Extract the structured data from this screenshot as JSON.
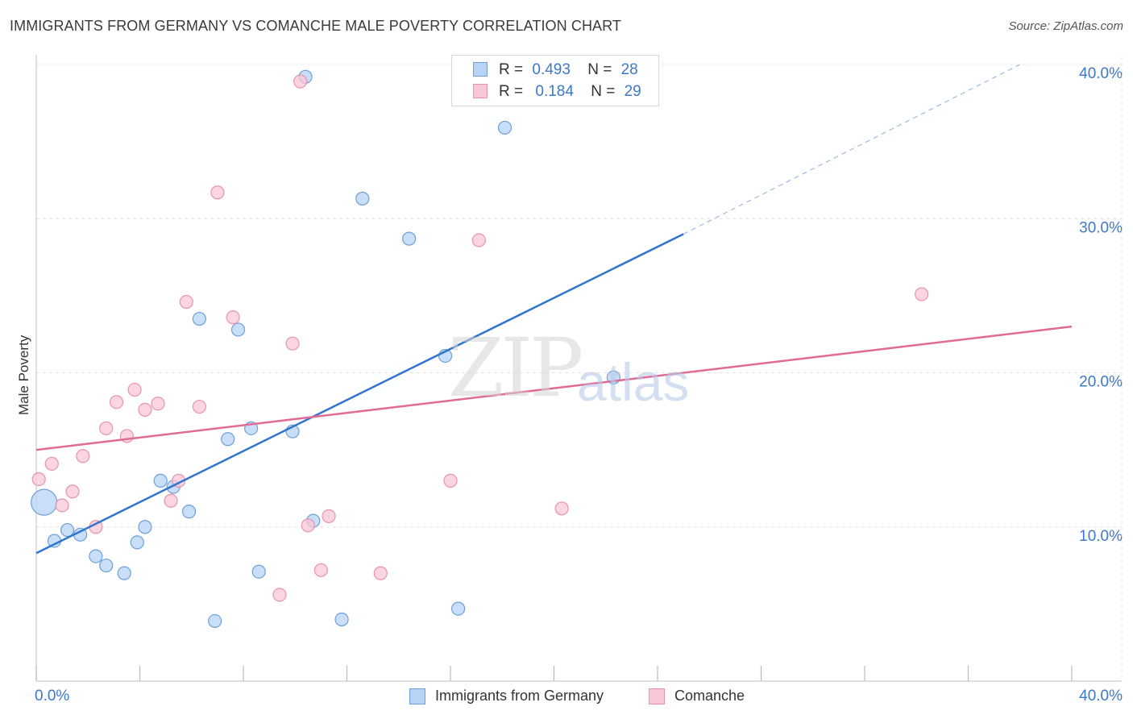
{
  "header": {
    "title": "IMMIGRANTS FROM GERMANY VS COMANCHE MALE POVERTY CORRELATION CHART",
    "source": "Source: ZipAtlas.com"
  },
  "watermark": {
    "zip": "ZIP",
    "atlas": "atlas"
  },
  "legend_top": {
    "rows": [
      {
        "r_label": "R =",
        "r_value": "0.493",
        "n_label": "N =",
        "n_value": "28"
      },
      {
        "r_label": "R =",
        "r_value": "0.184",
        "n_label": "N =",
        "n_value": "29"
      }
    ]
  },
  "colors": {
    "blue_fill": "#b7d3f5",
    "blue_stroke": "#6f9fd8",
    "blue_line": "#2f74cf",
    "pink_fill": "#f9c8d6",
    "pink_stroke": "#e693ad",
    "pink_line": "#e06b93",
    "grid": "#e2e2e2",
    "tick_label": "#3b78c9"
  },
  "chart_data": {
    "type": "scatter",
    "title": "IMMIGRANTS FROM GERMANY VS COMANCHE MALE POVERTY CORRELATION CHART",
    "xlabel": "",
    "ylabel": "Male Poverty",
    "xlim": [
      0,
      40
    ],
    "ylim": [
      0,
      40
    ],
    "x_tick_labels": [
      "0.0%",
      "40.0%"
    ],
    "y_ticks": [
      10,
      20,
      30,
      40
    ],
    "y_tick_labels": [
      "10.0%",
      "20.0%",
      "30.0%",
      "40.0%"
    ],
    "grid": true,
    "legend_position": "bottom",
    "series": [
      {
        "name": "Immigrants from Germany",
        "color": "#b7d3f5",
        "trend": {
          "x0": 0,
          "y0": 8.3,
          "x1": 25,
          "y1": 29.0,
          "dash_to_x": 38,
          "dash_to_y": 40.0
        },
        "points": [
          [
            0.3,
            11.6
          ],
          [
            0.7,
            9.1
          ],
          [
            1.2,
            9.8
          ],
          [
            1.7,
            9.5
          ],
          [
            2.3,
            8.1
          ],
          [
            2.7,
            7.5
          ],
          [
            3.4,
            7.0
          ],
          [
            3.9,
            9.0
          ],
          [
            4.2,
            10.0
          ],
          [
            4.8,
            13.0
          ],
          [
            5.3,
            12.6
          ],
          [
            5.9,
            11.0
          ],
          [
            6.3,
            23.5
          ],
          [
            6.9,
            3.9
          ],
          [
            7.4,
            15.7
          ],
          [
            7.8,
            22.8
          ],
          [
            8.3,
            16.4
          ],
          [
            8.6,
            7.1
          ],
          [
            9.9,
            16.2
          ],
          [
            10.4,
            39.2
          ],
          [
            10.7,
            10.4
          ],
          [
            11.8,
            4.0
          ],
          [
            12.6,
            31.3
          ],
          [
            14.4,
            28.7
          ],
          [
            15.8,
            21.1
          ],
          [
            16.3,
            4.7
          ],
          [
            18.1,
            35.9
          ],
          [
            22.3,
            19.7
          ]
        ]
      },
      {
        "name": "Comanche",
        "color": "#f9c8d6",
        "trend": {
          "x0": 0,
          "y0": 15.0,
          "x1": 40,
          "y1": 23.0
        },
        "points": [
          [
            0.1,
            13.1
          ],
          [
            0.6,
            14.1
          ],
          [
            1.0,
            11.4
          ],
          [
            1.4,
            12.3
          ],
          [
            1.8,
            14.6
          ],
          [
            2.3,
            10.0
          ],
          [
            2.7,
            16.4
          ],
          [
            3.1,
            18.1
          ],
          [
            3.5,
            15.9
          ],
          [
            3.8,
            18.9
          ],
          [
            4.2,
            17.6
          ],
          [
            4.7,
            18.0
          ],
          [
            5.2,
            11.7
          ],
          [
            5.5,
            13.0
          ],
          [
            5.8,
            24.6
          ],
          [
            6.3,
            17.8
          ],
          [
            7.0,
            31.7
          ],
          [
            7.6,
            23.6
          ],
          [
            9.4,
            5.6
          ],
          [
            9.9,
            21.9
          ],
          [
            10.2,
            38.9
          ],
          [
            10.5,
            10.1
          ],
          [
            11.0,
            7.2
          ],
          [
            11.3,
            10.7
          ],
          [
            13.3,
            7.0
          ],
          [
            16.0,
            13.0
          ],
          [
            17.1,
            28.6
          ],
          [
            20.3,
            11.2
          ],
          [
            34.2,
            25.1
          ]
        ]
      }
    ]
  },
  "legend_bottom": {
    "items": [
      {
        "label": "Immigrants from Germany"
      },
      {
        "label": "Comanche"
      }
    ]
  }
}
